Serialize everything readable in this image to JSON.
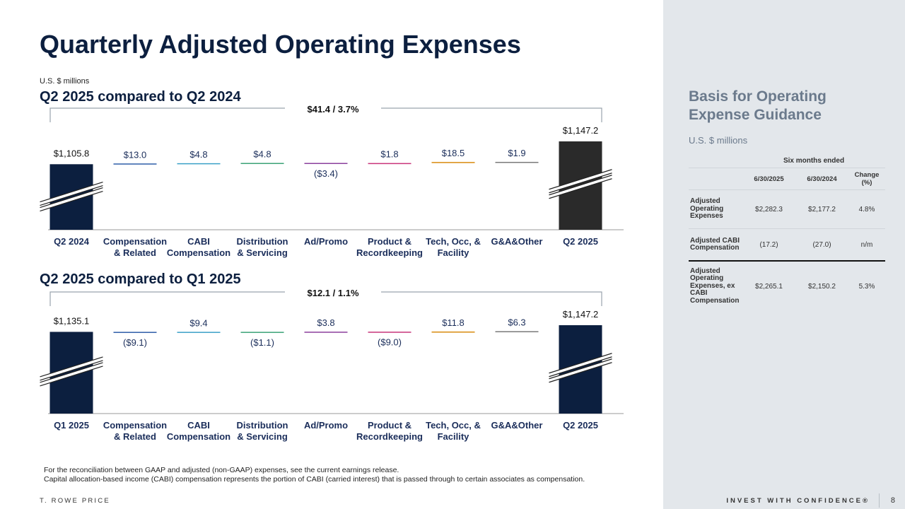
{
  "title": "Quarterly Adjusted Operating Expenses",
  "units": "U.S. $ millions",
  "charts": [
    {
      "subtitle": "Q2 2025 compared to Q2 2024",
      "change_label": "$41.4 / 3.7%"
    },
    {
      "subtitle": "Q2 2025 compared to Q1 2025",
      "change_label": "$12.1 / 1.1%"
    }
  ],
  "chart_data": [
    {
      "type": "bar",
      "subtype": "waterfall",
      "title": "Q2 2025 compared to Q2 2024",
      "categories": [
        [
          "Q2 2024"
        ],
        [
          "Compensation",
          "& Related"
        ],
        [
          "CABI",
          "Compensation"
        ],
        [
          "Distribution",
          "& Servicing"
        ],
        [
          "Ad/Promo"
        ],
        [
          "Product &",
          "Recordkeeping"
        ],
        [
          "Tech, Occ, &",
          "Facility"
        ],
        [
          "G&A&Other"
        ],
        [
          "Q2 2025"
        ]
      ],
      "values": [
        1105.8,
        13.0,
        4.8,
        4.8,
        -3.4,
        1.8,
        18.5,
        1.9,
        1147.2
      ],
      "labels": [
        "$1,105.8",
        "$13.0",
        "$4.8",
        "$4.8",
        "($3.4)",
        "$1.8",
        "$18.5",
        "$1.9",
        "$1,147.2"
      ],
      "colors": [
        "#0c1f3f",
        "#2e5da8",
        "#3aa0c8",
        "#3aa277",
        "#8b3f9c",
        "#c8347a",
        "#d98a0e",
        "#7a7a7a",
        "#2a2a2a"
      ],
      "axis_break": true
    },
    {
      "type": "bar",
      "subtype": "waterfall",
      "title": "Q2 2025 compared to Q1 2025",
      "categories": [
        [
          "Q1 2025"
        ],
        [
          "Compensation",
          "& Related"
        ],
        [
          "CABI",
          "Compensation"
        ],
        [
          "Distribution",
          "& Servicing"
        ],
        [
          "Ad/Promo"
        ],
        [
          "Product &",
          "Recordkeeping"
        ],
        [
          "Tech, Occ, &",
          "Facility"
        ],
        [
          "G&A&Other"
        ],
        [
          "Q2 2025"
        ]
      ],
      "values": [
        1135.1,
        -9.1,
        9.4,
        -1.1,
        3.8,
        -9.0,
        11.8,
        6.3,
        1147.2
      ],
      "labels": [
        "$1,135.1",
        "($9.1)",
        "$9.4",
        "($1.1)",
        "$3.8",
        "($9.0)",
        "$11.8",
        "$6.3",
        "$1,147.2"
      ],
      "colors": [
        "#0c1f3f",
        "#2e5da8",
        "#3aa0c8",
        "#3aa277",
        "#8b3f9c",
        "#c8347a",
        "#d98a0e",
        "#7a7a7a",
        "#0c1f3f"
      ],
      "axis_break": true
    }
  ],
  "footnotes": [
    "For the reconciliation between GAAP and adjusted (non-GAAP) expenses, see the current earnings release.",
    "Capital allocation-based income (CABI) compensation represents the portion of CABI (carried interest) that is passed through to certain associates as compensation."
  ],
  "brand": "T. ROWE PRICE",
  "slogan": "INVEST WITH CONFIDENCE®",
  "page_number": "8",
  "sidebar": {
    "title": "Basis for Operating Expense Guidance",
    "units": "U.S. $ millions",
    "group_header": "Six months ended",
    "columns": [
      "6/30/2025",
      "6/30/2024",
      "Change (%)"
    ],
    "rows": [
      {
        "label": "Adjusted Operating Expenses",
        "values": [
          "$2,282.3",
          "$2,177.2",
          "4.8%"
        ]
      },
      {
        "label": "Adjusted CABI Compensation",
        "values": [
          "(17.2)",
          "(27.0)",
          "n/m"
        ]
      },
      {
        "label": "Adjusted Operating Expenses, ex CABI Compensation",
        "values": [
          "$2,265.1",
          "$2,150.2",
          "5.3%"
        ]
      }
    ]
  }
}
